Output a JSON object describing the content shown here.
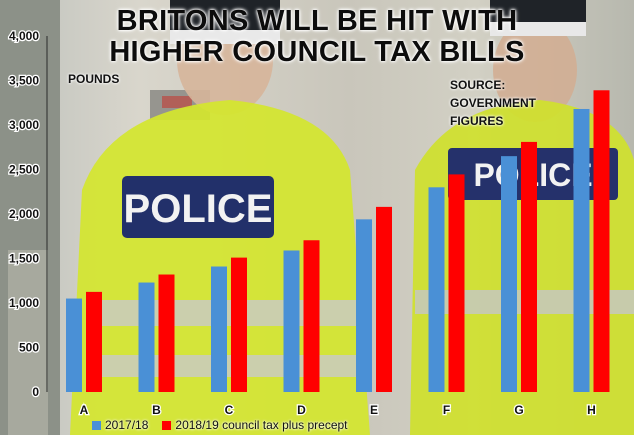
{
  "title_lines": [
    "BRITONS WILL BE HIT WITH",
    "HIGHER COUNCIL TAX BILLS"
  ],
  "units_label": "POUNDS",
  "source_lines": [
    "SOURCE:",
    "GOVERNMENT",
    "FIGURES"
  ],
  "background_photo": {
    "description_icon": "police-officers-photo",
    "vest_badge_text": "POLICE"
  },
  "colors": {
    "series_2017": "#4a90d6",
    "series_2018": "#ff0000",
    "hi_vis": "#d8ea30",
    "uniform_dark": "#23262b"
  },
  "chart_data": {
    "type": "bar",
    "title": "BRITONS WILL BE HIT WITH HIGHER COUNCIL TAX BILLS",
    "xlabel": "",
    "ylabel": "POUNDS",
    "categories": [
      "A",
      "B",
      "C",
      "D",
      "E",
      "F",
      "G",
      "H"
    ],
    "series": [
      {
        "name": "2017/18",
        "values": [
          1050,
          1230,
          1410,
          1590,
          1940,
          2300,
          2650,
          3180
        ]
      },
      {
        "name": "2018/19 council tax plus precept",
        "values": [
          1125,
          1320,
          1510,
          1705,
          2080,
          2445,
          2810,
          3390
        ]
      }
    ],
    "ylim": [
      0,
      4000
    ],
    "yticks": [
      0,
      500,
      1000,
      1500,
      2000,
      2500,
      3000,
      3500,
      4000
    ],
    "ytick_labels": [
      "0",
      "500",
      "1,000",
      "1,500",
      "2,000",
      "2,500",
      "3,000",
      "3,500",
      "4,000"
    ],
    "grid": false,
    "legend": "bottom"
  }
}
